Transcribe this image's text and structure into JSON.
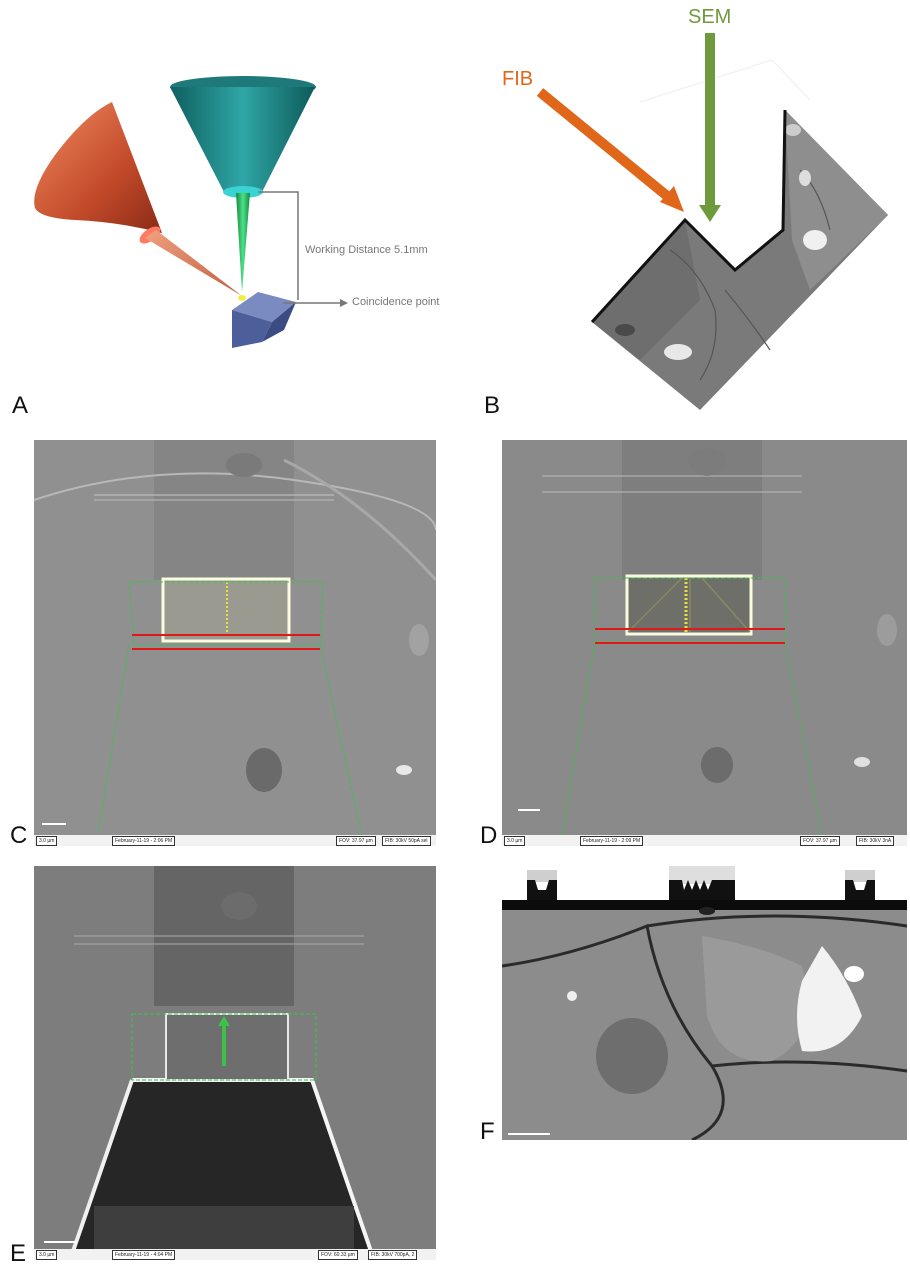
{
  "panels": {
    "a": {
      "letter": "A",
      "working_distance": "Working Distance 5.1mm",
      "coincidence": "Coincidence point"
    },
    "b": {
      "letter": "B",
      "fib_label": "FIB",
      "sem_label": "SEM"
    },
    "c": {
      "letter": "C",
      "bar_scale": "3.0 µm",
      "bar_date": "February-11-19 - 2:06 PM",
      "bar_fov": "FOV: 37.97 µm",
      "bar_beam": "FIB: 30kV 50pA sel"
    },
    "d": {
      "letter": "D",
      "bar_scale": "3.0 µm",
      "bar_date": "February-11-19 - 2:09 PM",
      "bar_fov": "FOV: 37.97 µm",
      "bar_beam": "FIB: 30kV 3nA"
    },
    "e": {
      "letter": "E",
      "bar_scale": "3.0 µm",
      "bar_date": "February-11-19 - 4:04 PM",
      "bar_fov": "FOV: 60.33 µm",
      "bar_beam": "FIB: 30kV 700pA, 2"
    },
    "f": {
      "letter": "F"
    }
  },
  "colors": {
    "fib": "#e0661a",
    "sem": "#6f9a3c",
    "sample": "#5a6ea8",
    "overlay_green": "#3cc24a",
    "overlay_red": "#e01818",
    "overlay_yellow": "#e6e23c"
  }
}
